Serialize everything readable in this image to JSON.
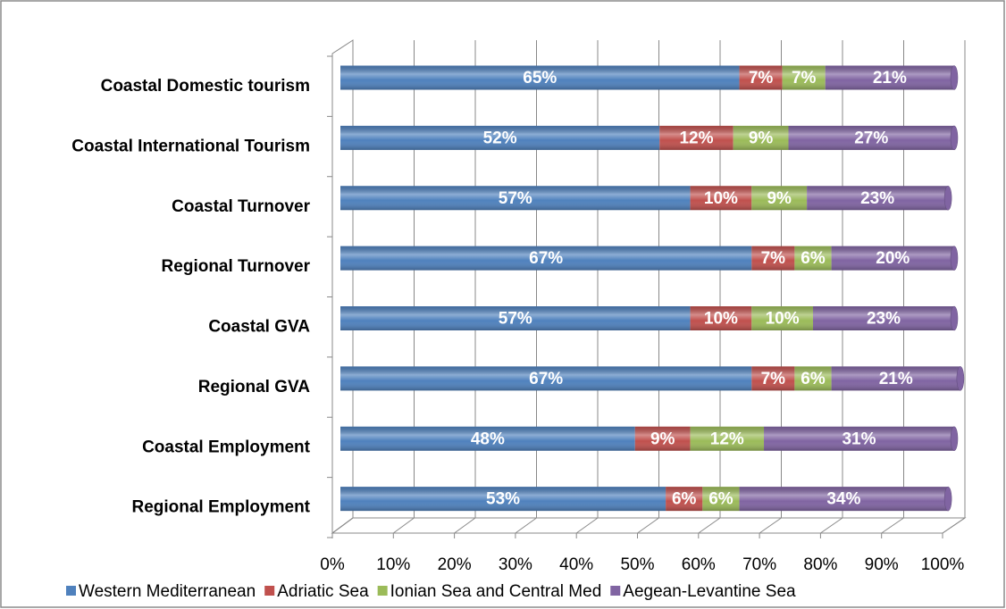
{
  "chart_data": {
    "type": "bar",
    "orientation": "horizontal",
    "stacked": true,
    "categories": [
      "Coastal Domestic tourism",
      "Coastal International Tourism",
      "Coastal Turnover",
      "Regional Turnover",
      "Coastal GVA",
      "Regional GVA",
      "Coastal Employment",
      "Regional Employment"
    ],
    "series": [
      {
        "name": "Western Mediterranean",
        "color": "#4f81bd",
        "values": [
          65,
          52,
          57,
          67,
          57,
          67,
          48,
          53
        ],
        "value_labels": [
          "65%",
          "52%",
          "57%",
          "67%",
          "57%",
          "67%",
          "48%",
          "53%"
        ]
      },
      {
        "name": "Adriatic Sea",
        "color": "#c0504d",
        "values": [
          7,
          12,
          10,
          7,
          10,
          7,
          9,
          6
        ],
        "value_labels": [
          "7%",
          "12%",
          "10%",
          "7%",
          "10%",
          "7%",
          "9%",
          "6%"
        ]
      },
      {
        "name": "Ionian Sea and Central Med",
        "color": "#9bbb59",
        "values": [
          7,
          9,
          9,
          6,
          10,
          6,
          12,
          6
        ],
        "value_labels": [
          "7%",
          "9%",
          "9%",
          "6%",
          "10%",
          "6%",
          "12%",
          "6%"
        ]
      },
      {
        "name": "Aegean-Levantine Sea",
        "color": "#8064a2",
        "values": [
          21,
          27,
          23,
          20,
          23,
          21,
          31,
          34
        ],
        "value_labels": [
          "21%",
          "27%",
          "23%",
          "20%",
          "23%",
          "21%",
          "31%",
          "34%"
        ]
      }
    ],
    "xlim": [
      0,
      100
    ],
    "xticks": [
      {
        "value": 0,
        "label": "0%"
      },
      {
        "value": 10,
        "label": "10%"
      },
      {
        "value": 20,
        "label": "20%"
      },
      {
        "value": 30,
        "label": "30%"
      },
      {
        "value": 40,
        "label": "40%"
      },
      {
        "value": 50,
        "label": "50%"
      },
      {
        "value": 60,
        "label": "60%"
      },
      {
        "value": 70,
        "label": "70%"
      },
      {
        "value": 80,
        "label": "80%"
      },
      {
        "value": 90,
        "label": "90%"
      },
      {
        "value": 100,
        "label": "100%"
      }
    ],
    "grid": true,
    "legend": "bottom"
  }
}
